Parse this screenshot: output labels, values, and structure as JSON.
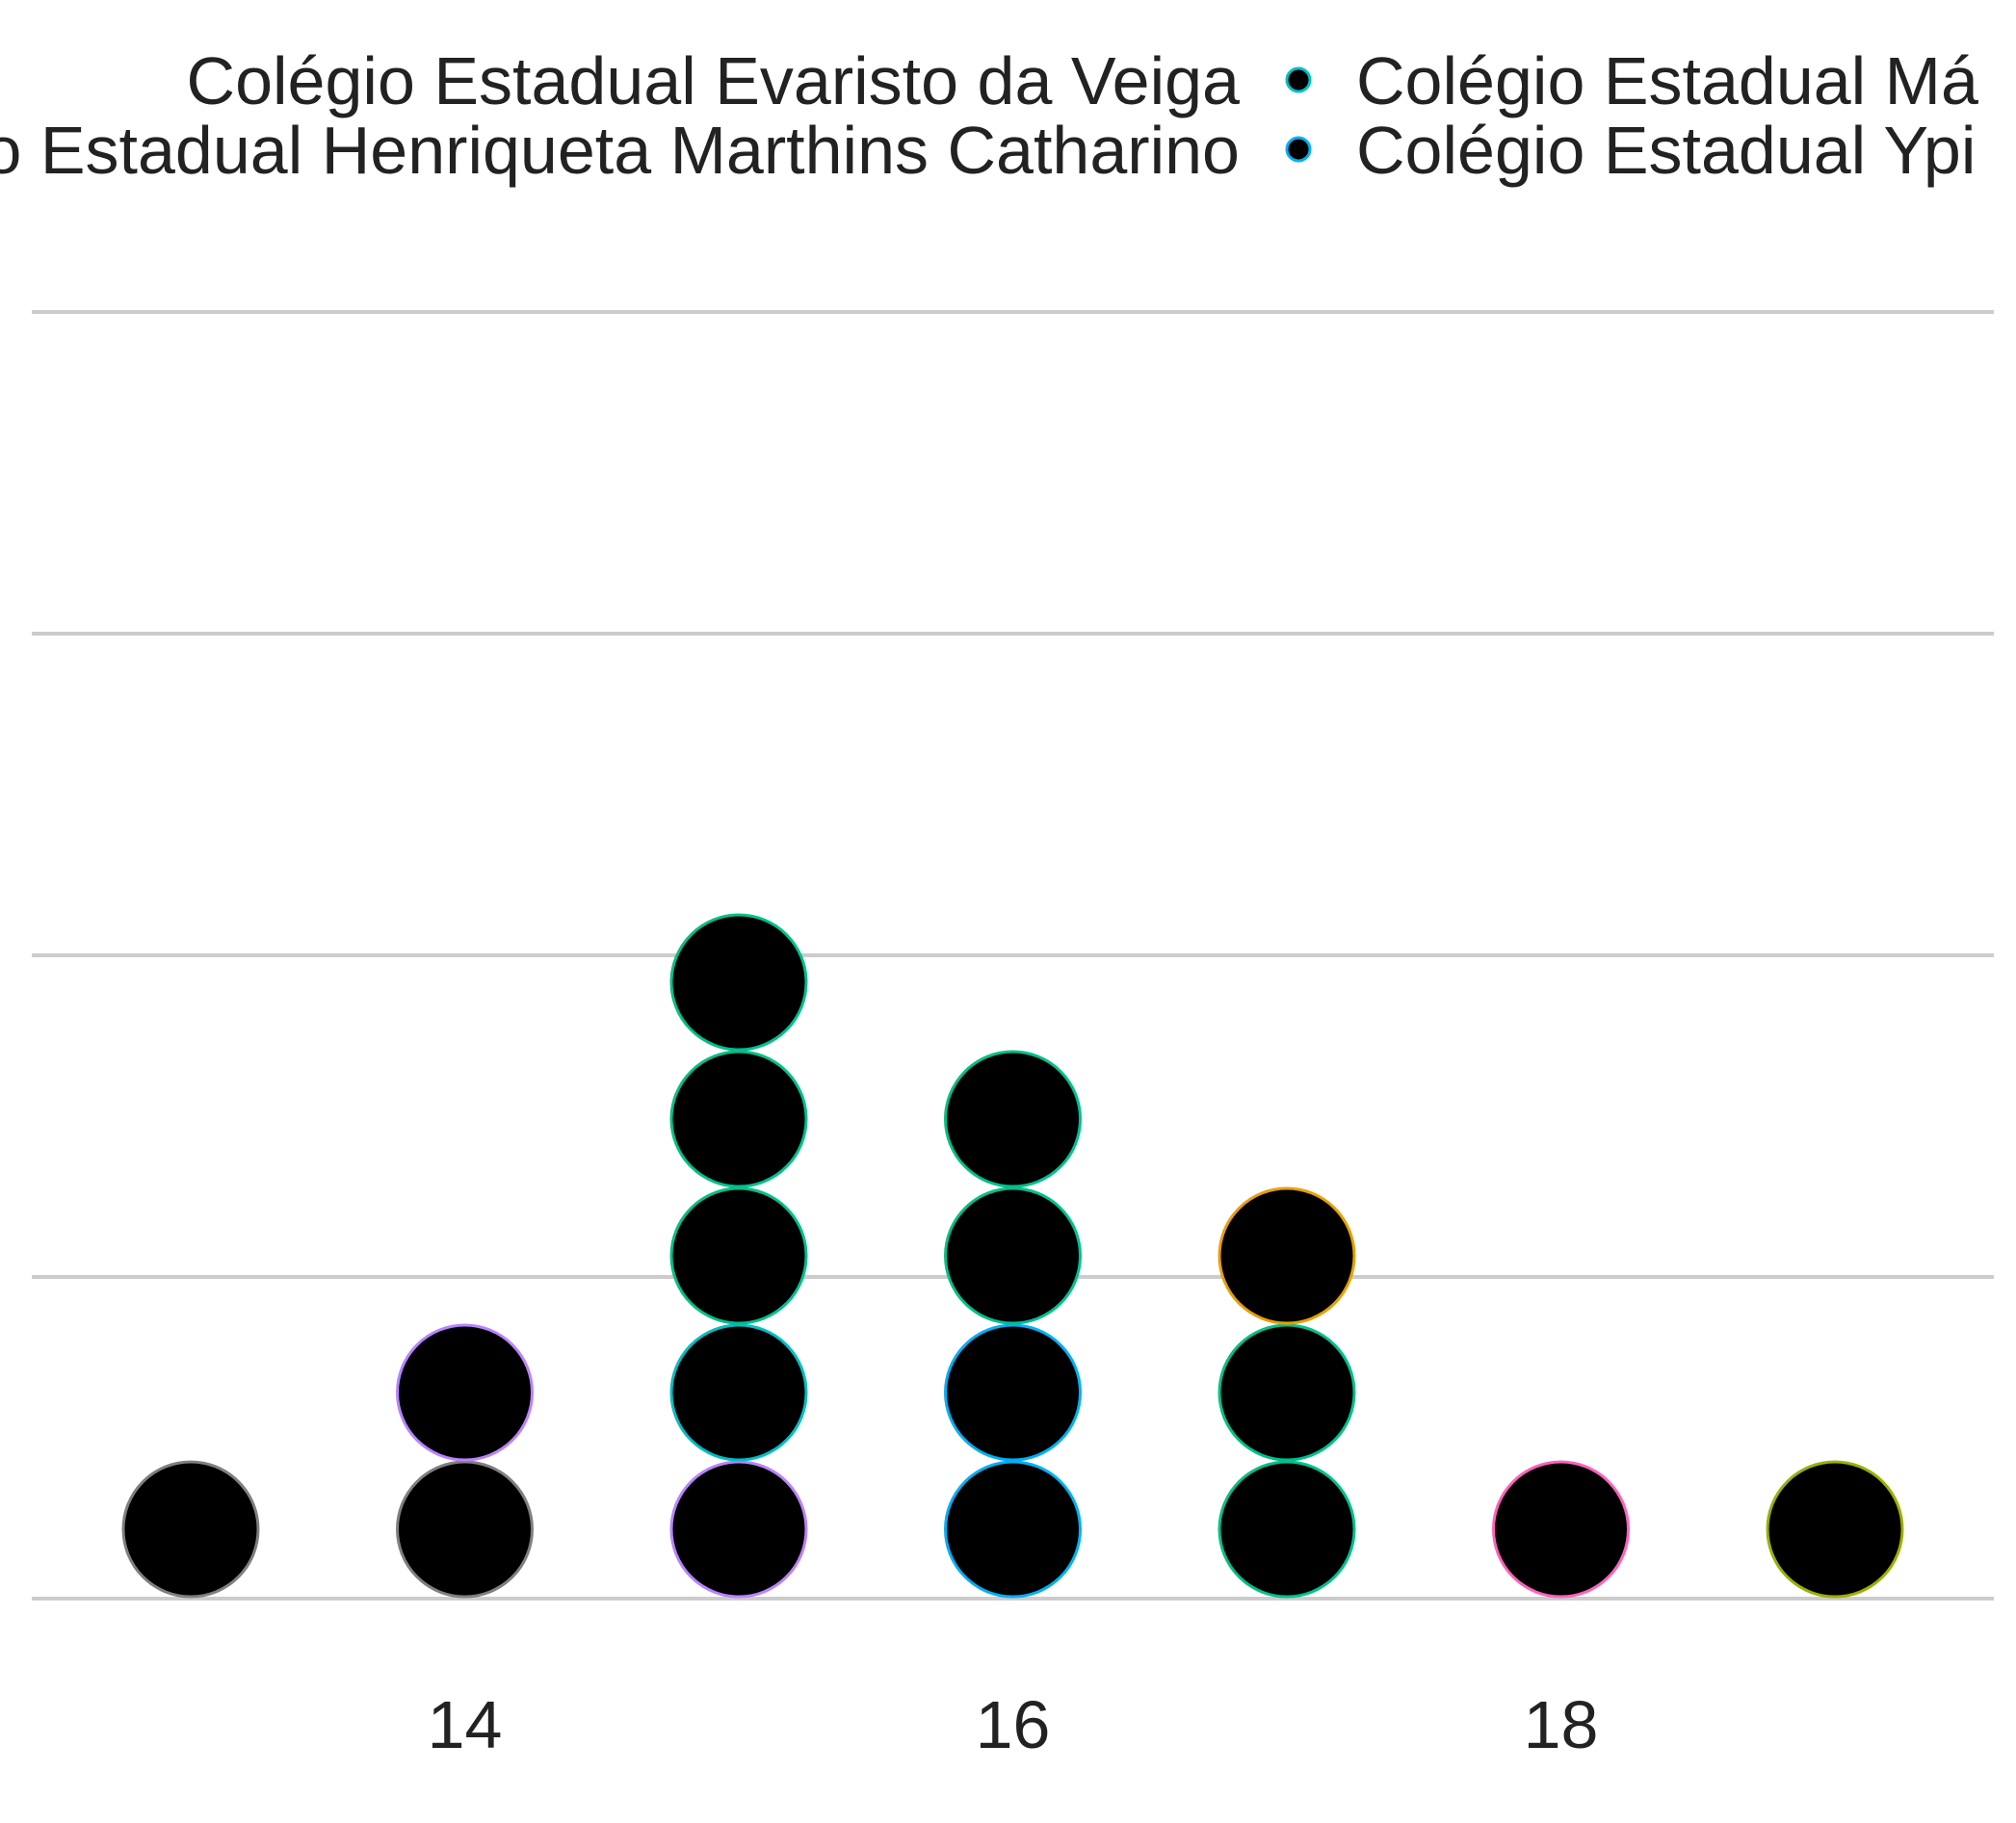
{
  "chart_data": {
    "type": "scatter",
    "subtype": "dotplot",
    "title": "",
    "xlabel": "",
    "ylabel": "",
    "x_ticks": [
      14,
      16,
      18
    ],
    "xlim": [
      12.6,
      19.8
    ],
    "grid": "horizontal",
    "legend_position": "top",
    "legend": [
      {
        "label": "Colégio Estadual Evaristo da Veiga",
        "color": "#f8766d",
        "column": 0,
        "row": 0
      },
      {
        "label": "Colégio Estadual Henriqueta Marthins Catharino",
        "color": "#a3a500",
        "column": 0,
        "row": 1
      },
      {
        "label": "Colégio Estadual Má",
        "color": "#00bfc4",
        "column": 1,
        "row": 0
      },
      {
        "label": "Colégio Estadual Ypi",
        "color": "#00b0f6",
        "column": 1,
        "row": 1
      }
    ],
    "points": [
      {
        "x": 13,
        "stack": 1,
        "color": "#7f7f7f"
      },
      {
        "x": 14,
        "stack": 1,
        "color": "#7f7f7f"
      },
      {
        "x": 14,
        "stack": 2,
        "color": "#b983ff"
      },
      {
        "x": 15,
        "stack": 1,
        "color": "#b983ff"
      },
      {
        "x": 15,
        "stack": 2,
        "color": "#00bfc4"
      },
      {
        "x": 15,
        "stack": 3,
        "color": "#00c08b"
      },
      {
        "x": 15,
        "stack": 4,
        "color": "#00c08b"
      },
      {
        "x": 15,
        "stack": 5,
        "color": "#00c08b"
      },
      {
        "x": 16,
        "stack": 1,
        "color": "#00b0f6"
      },
      {
        "x": 16,
        "stack": 2,
        "color": "#00b0f6"
      },
      {
        "x": 16,
        "stack": 3,
        "color": "#00c08b"
      },
      {
        "x": 16,
        "stack": 4,
        "color": "#00c08b"
      },
      {
        "x": 17,
        "stack": 1,
        "color": "#00c08b"
      },
      {
        "x": 17,
        "stack": 2,
        "color": "#00c08b"
      },
      {
        "x": 17,
        "stack": 3,
        "color": "#e7a000"
      },
      {
        "x": 18,
        "stack": 1,
        "color": "#ff62bc"
      },
      {
        "x": 19,
        "stack": 1,
        "color": "#9cb000"
      }
    ],
    "point_fill": "#000000",
    "gridline_color": "#cccccc"
  }
}
